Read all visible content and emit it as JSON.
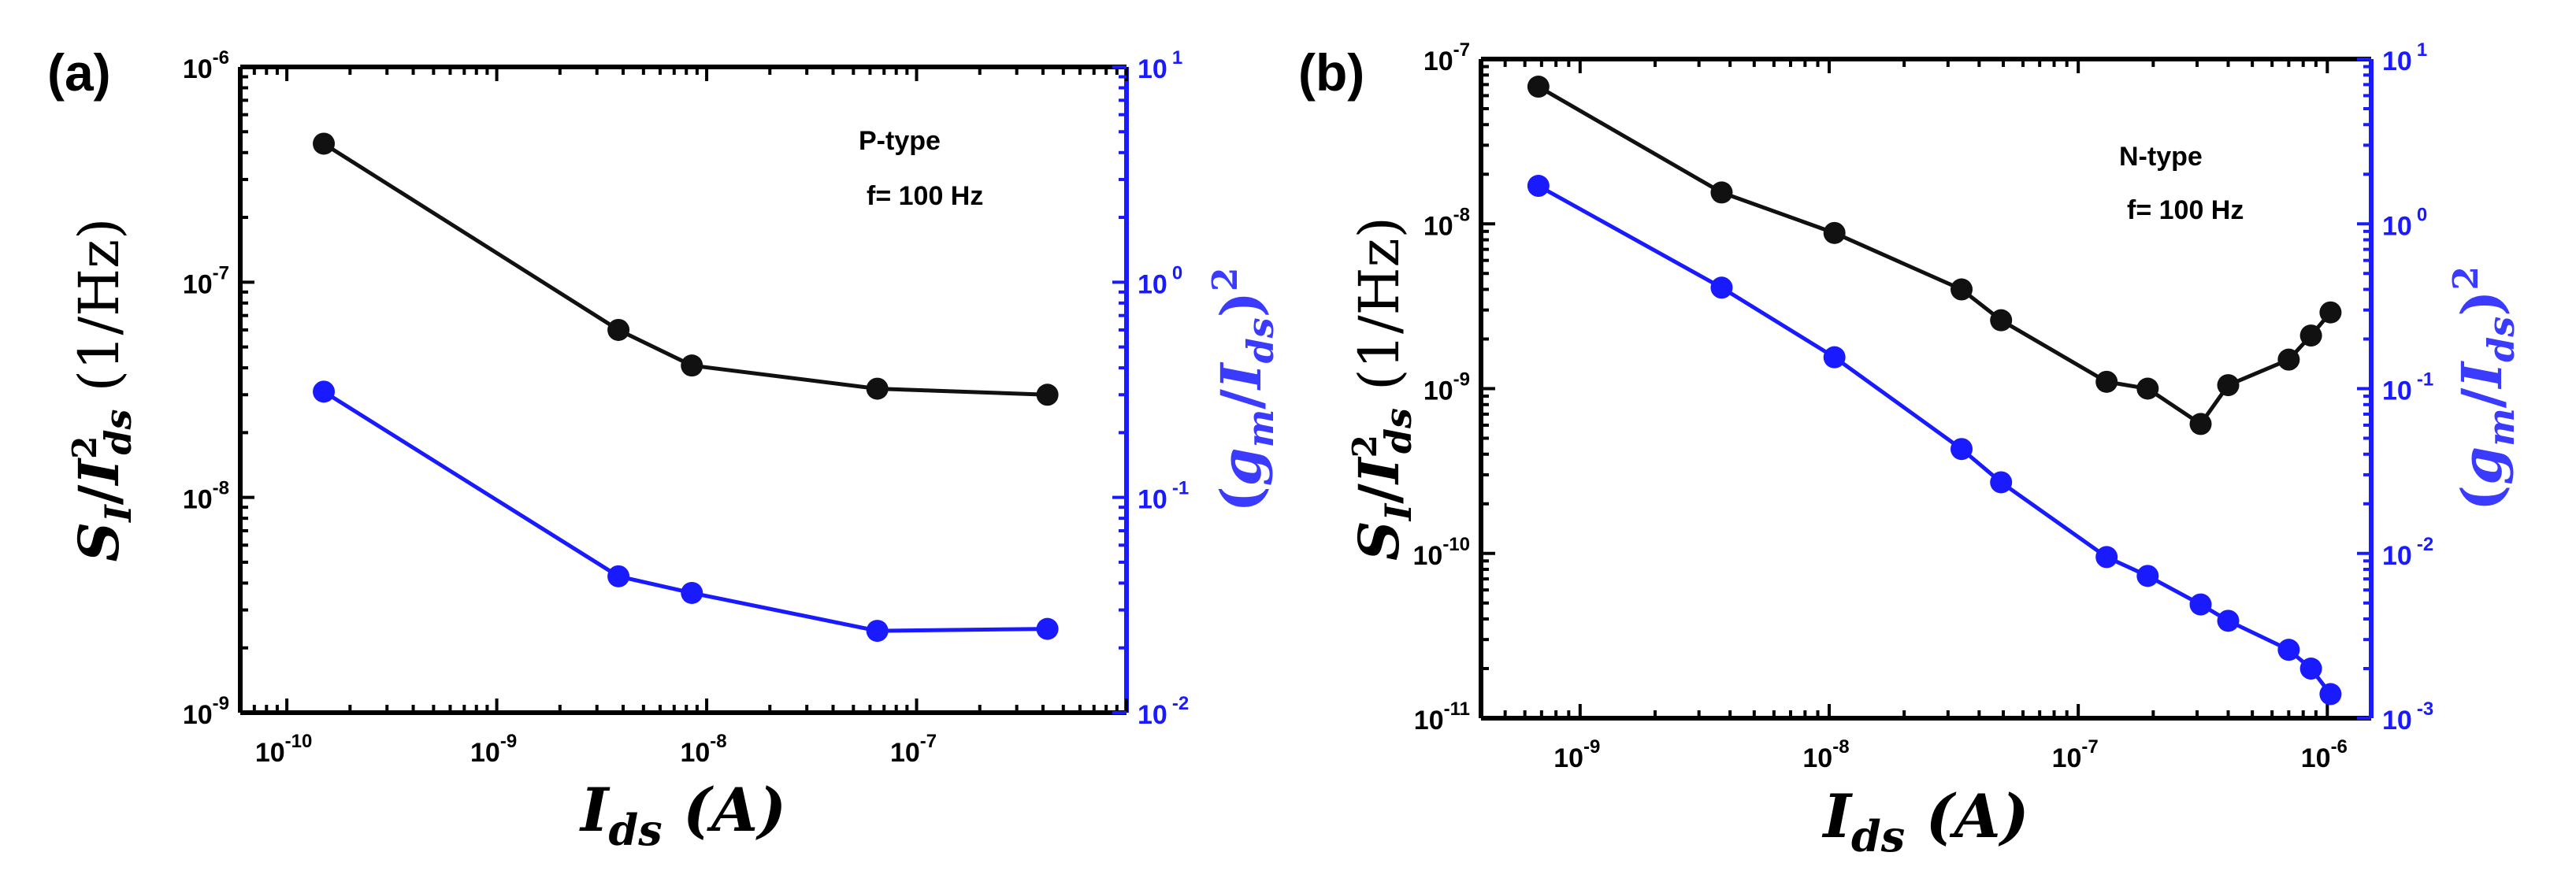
{
  "chart_data": [
    {
      "type": "line",
      "panel_label": "(a)",
      "annotations": [
        "P-type",
        "f= 100 Hz"
      ],
      "xlabel": "I_ds (A)",
      "ylabel": "S_I/I_ds^2 (1/Hz)",
      "y2label": "(g_m/I_ds)^2",
      "xscale": "log",
      "yscale": "log",
      "y2scale": "log",
      "xlim": [
        6e-11,
        1e-06
      ],
      "ylim": [
        1e-09,
        1e-06
      ],
      "y2lim": [
        0.01,
        10
      ],
      "x_tick_labels": [
        {
          "value": 1e-10,
          "base": "10",
          "exp": "-10"
        },
        {
          "value": 1e-09,
          "base": "10",
          "exp": "-9"
        },
        {
          "value": 1e-08,
          "base": "10",
          "exp": "-8"
        },
        {
          "value": 1e-07,
          "base": "10",
          "exp": "-7"
        }
      ],
      "y_tick_labels": [
        {
          "value": 1e-06,
          "base": "10",
          "exp": "-6"
        },
        {
          "value": 1e-07,
          "base": "10",
          "exp": "-7"
        },
        {
          "value": 1e-08,
          "base": "10",
          "exp": "-8"
        },
        {
          "value": 1e-09,
          "base": "10",
          "exp": "-9"
        }
      ],
      "y2_tick_labels": [
        {
          "value": 10,
          "base": "10",
          "exp": "1"
        },
        {
          "value": 1,
          "base": "10",
          "exp": "0"
        },
        {
          "value": 0.1,
          "base": "10",
          "exp": "-1"
        },
        {
          "value": 0.01,
          "base": "10",
          "exp": "-2"
        }
      ],
      "series": [
        {
          "name": "S_I/I_ds^2",
          "axis": "left",
          "color": "#111111",
          "x": [
            1.5e-10,
            3.8e-09,
            8.5e-09,
            6.5e-08,
            4.2e-07
          ],
          "y": [
            4.4e-07,
            6e-08,
            4.1e-08,
            3.2e-08,
            3e-08
          ]
        },
        {
          "name": "(g_m/I_ds)^2",
          "axis": "right",
          "color": "#1a1aff",
          "x": [
            1.5e-10,
            3.8e-09,
            8.5e-09,
            6.5e-08,
            4.2e-07
          ],
          "y": [
            0.31,
            0.043,
            0.036,
            0.024,
            0.0245
          ]
        }
      ]
    },
    {
      "type": "line",
      "panel_label": "(b)",
      "annotations": [
        "N-type",
        "f= 100 Hz"
      ],
      "xlabel": "I_ds (A)",
      "ylabel": "S_I/I_ds^2 (1/Hz)",
      "y2label": "(g_m/I_ds)^2",
      "xscale": "log",
      "yscale": "log",
      "y2scale": "log",
      "xlim": [
        4e-10,
        1.5e-06
      ],
      "ylim": [
        1e-11,
        1e-07
      ],
      "y2lim": [
        0.001,
        10
      ],
      "x_tick_labels": [
        {
          "value": 1e-09,
          "base": "10",
          "exp": "-9"
        },
        {
          "value": 1e-08,
          "base": "10",
          "exp": "-8"
        },
        {
          "value": 1e-07,
          "base": "10",
          "exp": "-7"
        },
        {
          "value": 1e-06,
          "base": "10",
          "exp": "-6"
        }
      ],
      "y_tick_labels": [
        {
          "value": 1e-07,
          "base": "10",
          "exp": "-7"
        },
        {
          "value": 1e-08,
          "base": "10",
          "exp": "-8"
        },
        {
          "value": 1e-09,
          "base": "10",
          "exp": "-9"
        },
        {
          "value": 1e-10,
          "base": "10",
          "exp": "-10"
        },
        {
          "value": 1e-11,
          "base": "10",
          "exp": "-11"
        }
      ],
      "y2_tick_labels": [
        {
          "value": 10,
          "base": "10",
          "exp": "1"
        },
        {
          "value": 1,
          "base": "10",
          "exp": "0"
        },
        {
          "value": 0.1,
          "base": "10",
          "exp": "-1"
        },
        {
          "value": 0.01,
          "base": "10",
          "exp": "-2"
        },
        {
          "value": 0.001,
          "base": "10",
          "exp": "-3"
        }
      ],
      "series": [
        {
          "name": "S_I/I_ds^2",
          "axis": "left",
          "color": "#111111",
          "x": [
            6.8e-10,
            3.7e-09,
            1.05e-08,
            3.4e-08,
            4.9e-08,
            1.3e-07,
            1.9e-07,
            3.1e-07,
            4e-07,
            7e-07,
            8.6e-07,
            1.03e-06
          ],
          "y": [
            6.8e-08,
            1.55e-08,
            8.8e-09,
            4e-09,
            2.6e-09,
            1.1e-09,
            1e-09,
            6.1e-10,
            1.05e-09,
            1.5e-09,
            2.1e-09,
            2.9e-09
          ]
        },
        {
          "name": "(g_m/I_ds)^2",
          "axis": "right",
          "color": "#1a1aff",
          "x": [
            6.8e-10,
            3.7e-09,
            1.05e-08,
            3.4e-08,
            4.9e-08,
            1.3e-07,
            1.9e-07,
            3.1e-07,
            4e-07,
            7e-07,
            8.6e-07,
            1.03e-06
          ],
          "y": [
            1.7,
            0.41,
            0.155,
            0.043,
            0.027,
            0.0095,
            0.0073,
            0.0049,
            0.0039,
            0.0026,
            0.002,
            0.0014
          ]
        }
      ]
    }
  ]
}
